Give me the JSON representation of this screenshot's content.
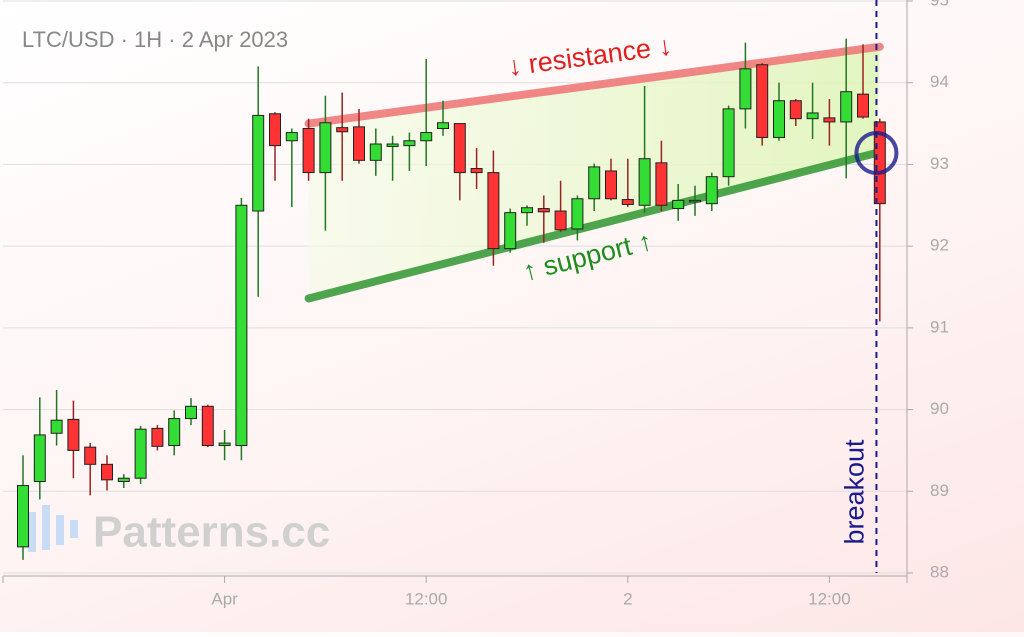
{
  "chart_data": {
    "type": "candlestick",
    "title": "LTC/USD · 1H · 2 Apr 2023",
    "watermark": "Patterns.cc",
    "categories": [
      null,
      null,
      null,
      null,
      null,
      null,
      null,
      null,
      null,
      null,
      null,
      null,
      "Apr",
      null,
      null,
      null,
      null,
      null,
      null,
      null,
      null,
      null,
      null,
      null,
      "12:00",
      null,
      null,
      null,
      null,
      null,
      null,
      null,
      null,
      null,
      null,
      null,
      "2",
      null,
      null,
      null,
      null,
      null,
      null,
      null,
      null,
      null,
      null,
      null,
      "12:00",
      null,
      null,
      null
    ],
    "open": [
      88.32,
      89.12,
      89.71,
      89.88,
      89.54,
      89.33,
      89.12,
      89.16,
      89.77,
      89.56,
      89.89,
      90.04,
      89.56,
      89.56,
      92.43,
      93.62,
      93.29,
      93.44,
      92.9,
      93.45,
      93.46,
      93.05,
      93.22,
      93.23,
      93.29,
      93.44,
      93.5,
      92.95,
      92.9,
      91.97,
      92.41,
      92.46,
      92.43,
      92.21,
      92.58,
      92.92,
      92.57,
      92.5,
      93.02,
      92.46,
      92.55,
      92.52,
      92.85,
      93.68,
      94.22,
      93.33,
      93.78,
      93.56,
      93.57,
      93.52,
      93.86,
      93.52
    ],
    "high": [
      89.44,
      90.15,
      90.24,
      90.11,
      89.59,
      89.44,
      89.21,
      89.8,
      89.81,
      89.99,
      90.14,
      90.06,
      89.75,
      92.59,
      94.2,
      93.64,
      93.44,
      93.56,
      93.84,
      93.88,
      93.68,
      93.44,
      93.35,
      93.39,
      94.29,
      93.78,
      93.5,
      93.2,
      93.17,
      92.46,
      92.5,
      92.62,
      92.8,
      92.62,
      93.01,
      93.07,
      93.07,
      93.96,
      93.29,
      92.76,
      92.74,
      92.9,
      93.72,
      94.49,
      94.24,
      94.0,
      93.8,
      94.0,
      93.8,
      94.54,
      94.47,
      93.56
    ],
    "low": [
      88.16,
      88.9,
      89.56,
      89.16,
      88.95,
      89.01,
      89.04,
      89.09,
      89.5,
      89.44,
      89.81,
      89.54,
      89.38,
      89.38,
      91.38,
      92.8,
      92.48,
      92.8,
      92.19,
      92.8,
      93.01,
      92.86,
      92.8,
      92.92,
      92.98,
      93.35,
      92.56,
      92.7,
      91.76,
      91.92,
      92.25,
      92.04,
      92.17,
      92.07,
      92.43,
      92.56,
      92.48,
      92.41,
      92.43,
      92.31,
      92.37,
      92.43,
      92.74,
      93.44,
      93.23,
      93.29,
      93.47,
      93.31,
      93.23,
      92.83,
      93.56,
      91.08
    ],
    "close": [
      89.07,
      89.69,
      89.87,
      89.5,
      89.33,
      89.14,
      89.16,
      89.76,
      89.55,
      89.89,
      90.04,
      89.56,
      89.59,
      92.5,
      93.6,
      93.23,
      93.39,
      92.9,
      93.51,
      93.4,
      93.05,
      93.25,
      93.25,
      93.29,
      93.39,
      93.51,
      92.9,
      92.9,
      91.97,
      92.41,
      92.47,
      92.42,
      92.2,
      92.58,
      92.97,
      92.58,
      92.51,
      93.07,
      92.5,
      92.56,
      92.56,
      92.85,
      93.68,
      94.17,
      93.33,
      93.78,
      93.56,
      93.63,
      93.52,
      93.89,
      93.58,
      92.52
    ],
    "up_color": "#33dd33",
    "down_color": "#ff3333",
    "ylim": [
      88,
      95
    ],
    "yticks": [
      88,
      89,
      90,
      91,
      92,
      93,
      94,
      95
    ],
    "grid": true,
    "trendlines": [
      {
        "label": "↓ resistance ↓",
        "color": "#f07a7a",
        "x": [
          17,
          51
        ],
        "y": [
          93.5,
          94.44
        ]
      },
      {
        "label": "↑ support ↑",
        "color": "#3c9c3c",
        "x": [
          17,
          50.8
        ],
        "y": [
          91.36,
          93.14
        ]
      }
    ],
    "breakout": {
      "label": "breakout",
      "x": 50.8,
      "y": 93.14,
      "color": "#1a1a8c"
    }
  }
}
